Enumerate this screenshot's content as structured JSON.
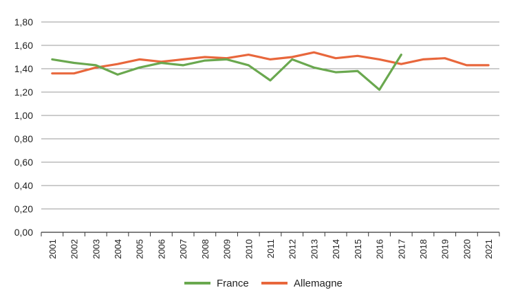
{
  "chart_data": {
    "type": "line",
    "title": "",
    "xlabel": "",
    "ylabel": "",
    "ylim": [
      0,
      1.8
    ],
    "yticks": [
      "0,00",
      "0,20",
      "0,40",
      "0,60",
      "0,80",
      "1,00",
      "1,20",
      "1,40",
      "1,60",
      "1,80"
    ],
    "grid": true,
    "legend_position": "bottom",
    "x": [
      "2001",
      "2002",
      "2003",
      "2004",
      "2005",
      "2006",
      "2007",
      "2008",
      "2009",
      "2010",
      "2011",
      "2012",
      "2013",
      "2014",
      "2015",
      "2016",
      "2017",
      "2018",
      "2019",
      "2020",
      "2021"
    ],
    "series": [
      {
        "name": "France",
        "color": "#6aa84f",
        "values": [
          1.48,
          1.45,
          1.43,
          1.35,
          1.41,
          1.45,
          1.43,
          1.47,
          1.48,
          1.43,
          1.3,
          1.48,
          1.41,
          1.37,
          1.38,
          1.22,
          1.52,
          null,
          null,
          null,
          null
        ]
      },
      {
        "name": "Allemagne",
        "color": "#e8673c",
        "values": [
          1.36,
          1.36,
          1.41,
          1.44,
          1.48,
          1.46,
          1.48,
          1.5,
          1.49,
          1.52,
          1.48,
          1.5,
          1.54,
          1.49,
          1.51,
          1.48,
          1.44,
          1.48,
          1.49,
          1.43,
          1.43
        ]
      }
    ]
  }
}
